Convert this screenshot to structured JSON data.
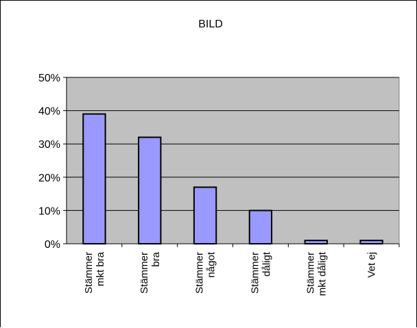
{
  "chart_data": {
    "type": "bar",
    "title": "BILD",
    "categories": [
      [
        "Stämmer",
        "mkt bra"
      ],
      [
        "Stämmer",
        "bra"
      ],
      [
        "Stämmer",
        "något"
      ],
      [
        "Stämmer",
        "dåligt"
      ],
      [
        "Stämmer",
        "mkt dåligt"
      ],
      [
        "Vet ej"
      ]
    ],
    "values": [
      39,
      32,
      17,
      10,
      1,
      1
    ],
    "ylim": [
      0,
      50
    ],
    "yticks": [
      "0%",
      "10%",
      "20%",
      "30%",
      "40%",
      "50%"
    ],
    "ytick_values": [
      0,
      10,
      20,
      30,
      40,
      50
    ],
    "grid": true,
    "legend": "none",
    "colors": {
      "bar_fill": "#9999ff",
      "plot_bg": "#c0c0c0",
      "gridline": "#000000",
      "outline": "#000000"
    }
  }
}
